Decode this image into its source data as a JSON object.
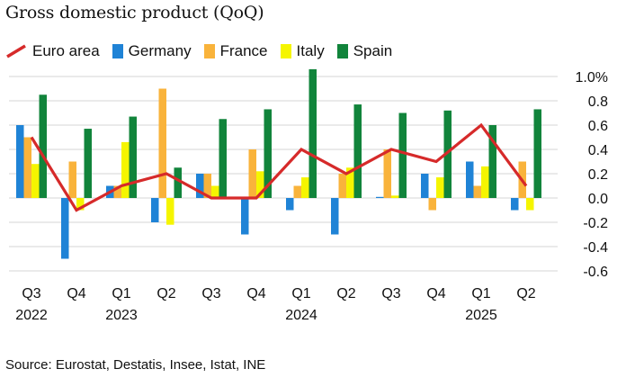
{
  "title": "Gross domestic product (QoQ)",
  "source": "Source: Eurostat, Destatis, Insee, Istat, INE",
  "colors": {
    "euro_area": "#d62a2a",
    "germany": "#1f83d6",
    "france": "#f9b33b",
    "italy": "#f5f500",
    "spain": "#11843b",
    "grid": "#d6d6d6"
  },
  "chart_data": {
    "type": "bar",
    "categories": [
      "Q3",
      "Q4",
      "Q1",
      "Q2",
      "Q3",
      "Q4",
      "Q1",
      "Q2",
      "Q3",
      "Q4",
      "Q1",
      "Q2"
    ],
    "years": [
      {
        "label": "2022",
        "index": 0
      },
      {
        "label": "2023",
        "index": 2
      },
      {
        "label": "2024",
        "index": 6
      },
      {
        "label": "2025",
        "index": 10
      }
    ],
    "series": [
      {
        "name": "Germany",
        "type": "bar",
        "values": [
          0.6,
          -0.5,
          0.1,
          -0.2,
          0.2,
          -0.3,
          -0.1,
          -0.3,
          0.0,
          0.2,
          0.3,
          -0.1
        ]
      },
      {
        "name": "France",
        "type": "bar",
        "values": [
          0.5,
          0.3,
          0.1,
          0.9,
          0.2,
          0.4,
          0.1,
          0.2,
          0.4,
          -0.1,
          0.1,
          0.3
        ]
      },
      {
        "name": "Italy",
        "type": "bar",
        "values": [
          0.28,
          -0.1,
          0.46,
          -0.22,
          0.1,
          0.22,
          0.17,
          0.25,
          0.02,
          0.17,
          0.26,
          -0.1
        ]
      },
      {
        "name": "Spain",
        "type": "bar",
        "values": [
          0.85,
          0.57,
          0.67,
          0.25,
          0.65,
          0.73,
          1.06,
          0.77,
          0.7,
          0.72,
          0.6,
          0.73
        ]
      },
      {
        "name": "Euro area",
        "type": "line",
        "values": [
          0.5,
          -0.1,
          0.1,
          0.2,
          0.0,
          0.0,
          0.4,
          0.2,
          0.4,
          0.3,
          0.6,
          0.1
        ]
      }
    ],
    "legend_order": [
      "Euro area",
      "Germany",
      "France",
      "Italy",
      "Spain"
    ],
    "y_ticks": [
      1.0,
      0.8,
      0.6,
      0.4,
      0.2,
      0.0,
      -0.2,
      -0.4,
      -0.6
    ],
    "y_tick_labels": [
      "1.0%",
      "0.8",
      "0.6",
      "0.4",
      "0.2",
      "0.0",
      "-0.2",
      "-0.4",
      "-0.6"
    ],
    "ylim": [
      -0.6,
      1.0
    ],
    "xlabel": "",
    "ylabel": "",
    "grid": true,
    "legend_position": "top-left"
  }
}
